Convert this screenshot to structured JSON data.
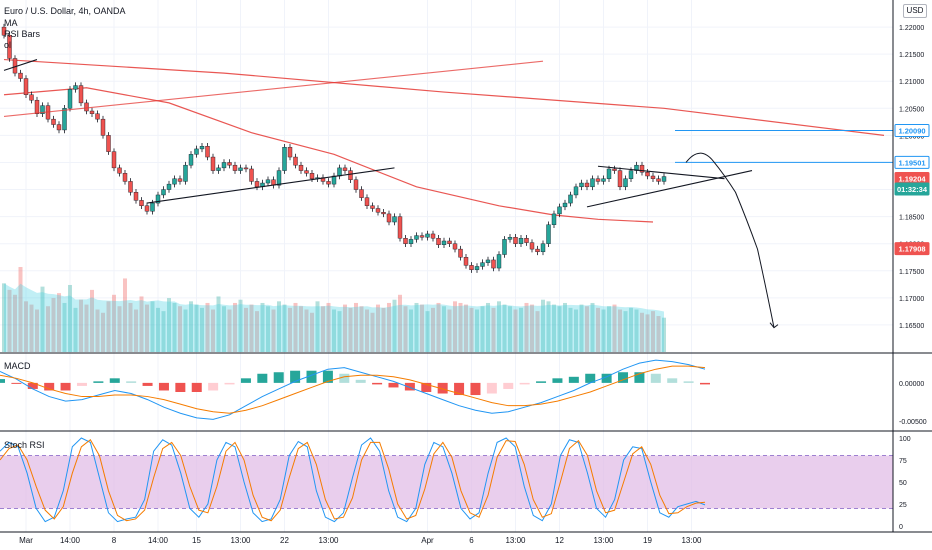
{
  "header": {
    "symbol": "Euro / U.S. Dollar, 4h, OANDA",
    "currency_button": "USD",
    "indicators": [
      "MA",
      "RSI Bars",
      "ol"
    ]
  },
  "colors": {
    "bull": "#26a69a",
    "bear": "#ef5350",
    "ma": "#e53935",
    "trend": "#131722",
    "level": "#2196f3",
    "stoch_k": "#2196f3",
    "stoch_d": "#f57c00",
    "stoch_band": "#e1bee7",
    "macd_line": "#2196f3",
    "signal_line": "#f57c00"
  },
  "chart_data": {
    "type": "candlestick",
    "symbol": "Euro / U.S. Dollar",
    "timeframe": "4h",
    "price_axis": {
      "ylim": [
        1.16,
        1.225
      ],
      "ticks": [
        "1.22000",
        "1.21500",
        "1.21000",
        "1.20500",
        "1.20000",
        "1.19500",
        "1.19000",
        "1.18500",
        "1.18000",
        "1.17500",
        "1.17000",
        "1.16500"
      ]
    },
    "price_labels": [
      {
        "text": "1.20090",
        "value": 1.2009,
        "style": "outline"
      },
      {
        "text": "1.19501",
        "value": 1.19501,
        "style": "outline"
      },
      {
        "text": "1.19204",
        "value": 1.19204,
        "style": "bear"
      },
      {
        "text": "01:32:34",
        "value": 1.1901,
        "style": "bull"
      },
      {
        "text": "1.17908",
        "value": 1.17908,
        "style": "bear"
      }
    ],
    "x_axis": {
      "labels": [
        "Mar",
        "14:00",
        "8",
        "14:00",
        "15",
        "13:00",
        "22",
        "13:00",
        "Apr",
        "6",
        "13:00",
        "12",
        "13:00",
        "19",
        "13:00"
      ],
      "label_bars": [
        4,
        12,
        20,
        28,
        35,
        43,
        51,
        59,
        77,
        85,
        93,
        101,
        109,
        117,
        125
      ]
    },
    "closes": [
      1.2185,
      1.2142,
      1.2115,
      1.2105,
      1.2075,
      1.2065,
      1.204,
      1.2055,
      1.203,
      1.202,
      1.201,
      1.205,
      1.2085,
      1.2092,
      1.206,
      1.2045,
      1.204,
      1.203,
      1.2,
      1.197,
      1.194,
      1.193,
      1.1915,
      1.1895,
      1.188,
      1.187,
      1.186,
      1.1875,
      1.189,
      1.19,
      1.191,
      1.192,
      1.1915,
      1.1945,
      1.1965,
      1.1975,
      1.198,
      1.196,
      1.1935,
      1.194,
      1.195,
      1.1945,
      1.1935,
      1.194,
      1.1938,
      1.1915,
      1.1905,
      1.1912,
      1.1918,
      1.1908,
      1.1935,
      1.1978,
      1.196,
      1.1945,
      1.1935,
      1.193,
      1.192,
      1.1922,
      1.1915,
      1.191,
      1.1925,
      1.194,
      1.1935,
      1.1918,
      1.19,
      1.1885,
      1.187,
      1.1865,
      1.1858,
      1.1855,
      1.184,
      1.185,
      1.181,
      1.18,
      1.1808,
      1.1815,
      1.1812,
      1.1818,
      1.181,
      1.1798,
      1.1805,
      1.18,
      1.179,
      1.1775,
      1.176,
      1.1752,
      1.1758,
      1.1765,
      1.177,
      1.1755,
      1.178,
      1.1808,
      1.1812,
      1.18,
      1.181,
      1.1802,
      1.179,
      1.1785,
      1.18,
      1.1835,
      1.1855,
      1.1868,
      1.1875,
      1.189,
      1.1905,
      1.1912,
      1.1905,
      1.192,
      1.1915,
      1.192,
      1.1938,
      1.1935,
      1.1905,
      1.192,
      1.1935,
      1.1945,
      1.1932,
      1.1925,
      1.192,
      1.1915,
      1.1924
    ],
    "moving_averages": [
      {
        "name": "MA",
        "points": [
          [
            0,
            1.2075
          ],
          [
            15,
            1.2088
          ],
          [
            30,
            1.206
          ],
          [
            45,
            1.2005
          ],
          [
            60,
            1.1965
          ],
          [
            75,
            1.1905
          ],
          [
            90,
            1.187
          ],
          [
            100,
            1.1853
          ],
          [
            108,
            1.1845
          ],
          [
            118,
            1.184
          ]
        ]
      },
      {
        "name": "MA long",
        "points": [
          [
            0,
            1.214
          ],
          [
            40,
            1.2115
          ],
          [
            80,
            1.208
          ],
          [
            120,
            1.205
          ],
          [
            160,
            1.2
          ]
        ]
      }
    ],
    "trendlines": [
      {
        "points": [
          [
            0,
            1.2035
          ],
          [
            98,
            1.2137
          ]
        ],
        "color": "ma"
      },
      {
        "points": [
          [
            0,
            1.212
          ],
          [
            6,
            1.214
          ]
        ],
        "color": "trend"
      },
      {
        "points": [
          [
            26,
            1.1875
          ],
          [
            71,
            1.194
          ]
        ],
        "color": "trend"
      },
      {
        "points": [
          [
            106,
            1.1868
          ],
          [
            136,
            1.1935
          ]
        ],
        "color": "trend"
      },
      {
        "points": [
          [
            108,
            1.1943
          ],
          [
            131,
            1.192
          ]
        ],
        "color": "trend"
      }
    ],
    "horizontal_levels": [
      {
        "value": 1.2009,
        "from_bar": 122
      },
      {
        "value": 1.19501,
        "from_bar": 122
      }
    ],
    "projection": {
      "points": [
        [
          124,
          1.195
        ],
        [
          129,
          1.1952
        ],
        [
          133,
          1.1895
        ],
        [
          137,
          1.179
        ],
        [
          140,
          1.1645
        ]
      ]
    },
    "volume": [
      420,
      380,
      350,
      520,
      310,
      290,
      260,
      400,
      280,
      330,
      360,
      300,
      410,
      270,
      320,
      290,
      380,
      260,
      240,
      310,
      350,
      280,
      450,
      300,
      260,
      340,
      290,
      310,
      270,
      250,
      330,
      300,
      280,
      260,
      310,
      290,
      270,
      300,
      260,
      340,
      280,
      260,
      300,
      320,
      270,
      290,
      250,
      300,
      280,
      260,
      310,
      290,
      270,
      300,
      280,
      260,
      240,
      310,
      280,
      300,
      260,
      250,
      290,
      270,
      300,
      280,
      260,
      240,
      290,
      270,
      300,
      320,
      350,
      280,
      260,
      300,
      290,
      250,
      270,
      300,
      280,
      260,
      310,
      300,
      290,
      270,
      260,
      280,
      300,
      270,
      310,
      290,
      280,
      260,
      270,
      300,
      290,
      250,
      320,
      310,
      290,
      280,
      300,
      270,
      260,
      290,
      280,
      300,
      270,
      260,
      280,
      290,
      260,
      250,
      270,
      260,
      240,
      230,
      250,
      220,
      210
    ],
    "macd": {
      "title": "MACD",
      "ylim": [
        -0.0062,
        0.0038
      ],
      "ticks": [
        "0.00000",
        "-0.00500"
      ],
      "tick_values": [
        0,
        -0.005
      ],
      "macd_line": [
        0.0015,
        0.0005,
        -0.0008,
        -0.0018,
        -0.0024,
        -0.0022,
        -0.0016,
        -0.001,
        -0.0014,
        -0.0022,
        -0.0032,
        -0.004,
        -0.0046,
        -0.0048,
        -0.0042,
        -0.003,
        -0.0018,
        -0.0008,
        0.0002,
        0.001,
        0.0018,
        0.002,
        0.0014,
        0.0008,
        0.0002,
        -0.0006,
        -0.0014,
        -0.0022,
        -0.003,
        -0.0036,
        -0.004,
        -0.0038,
        -0.0032,
        -0.0026,
        -0.0018,
        -0.001,
        0.0,
        0.0008,
        0.0018,
        0.0026,
        0.003,
        0.0028,
        0.0024,
        0.0018
      ],
      "signal_line": [
        0.001,
        0.0006,
        0.0,
        -0.0008,
        -0.0014,
        -0.0018,
        -0.0018,
        -0.0016,
        -0.0016,
        -0.0018,
        -0.0022,
        -0.0028,
        -0.0034,
        -0.0038,
        -0.004,
        -0.0036,
        -0.003,
        -0.0022,
        -0.0014,
        -0.0006,
        0.0002,
        0.0008,
        0.001,
        0.001,
        0.0008,
        0.0004,
        -0.0002,
        -0.0008,
        -0.0014,
        -0.002,
        -0.0026,
        -0.003,
        -0.003,
        -0.0028,
        -0.0024,
        -0.0018,
        -0.0012,
        -0.0004,
        0.0004,
        0.0012,
        0.0018,
        0.0022,
        0.0022,
        0.002
      ],
      "histogram": [
        0.0005,
        -0.0001,
        -0.0008,
        -0.001,
        -0.001,
        -0.0004,
        0.0002,
        0.0006,
        0.0002,
        -0.0004,
        -0.001,
        -0.0012,
        -0.0012,
        -0.001,
        -0.0002,
        0.0006,
        0.0012,
        0.0014,
        0.0016,
        0.0016,
        0.0016,
        0.0012,
        0.0004,
        -0.0002,
        -0.0006,
        -0.001,
        -0.0012,
        -0.0014,
        -0.0016,
        -0.0016,
        -0.0014,
        -0.0008,
        -0.0002,
        0.0002,
        0.0006,
        0.0008,
        0.0012,
        0.0012,
        0.0014,
        0.0014,
        0.0012,
        0.0006,
        0.0002,
        -0.0002
      ]
    },
    "stoch_rsi": {
      "title": "Stoch RSI",
      "ylim": [
        0,
        100
      ],
      "ticks": [
        "100",
        "75",
        "50",
        "25",
        "0"
      ],
      "tick_values": [
        100,
        75,
        50,
        25,
        0
      ],
      "bands": [
        20,
        80
      ],
      "k": [
        85,
        95,
        90,
        60,
        20,
        5,
        10,
        40,
        90,
        100,
        95,
        55,
        15,
        5,
        8,
        10,
        30,
        85,
        98,
        92,
        60,
        20,
        10,
        25,
        75,
        95,
        90,
        50,
        15,
        5,
        8,
        30,
        80,
        96,
        90,
        40,
        10,
        5,
        15,
        55,
        92,
        100,
        85,
        40,
        10,
        5,
        20,
        70,
        95,
        90,
        60,
        20,
        8,
        15,
        60,
        95,
        100,
        90,
        45,
        12,
        6,
        25,
        80,
        98,
        95,
        60,
        20,
        10,
        30,
        75,
        90,
        88,
        50,
        15,
        10,
        22,
        25,
        28,
        24
      ],
      "d": [
        75,
        88,
        92,
        75,
        45,
        18,
        8,
        22,
        60,
        90,
        98,
        80,
        40,
        12,
        6,
        8,
        18,
        55,
        88,
        95,
        80,
        45,
        18,
        15,
        45,
        85,
        95,
        75,
        35,
        10,
        6,
        18,
        55,
        88,
        95,
        70,
        30,
        8,
        10,
        32,
        75,
        95,
        95,
        65,
        25,
        8,
        12,
        42,
        82,
        95,
        78,
        40,
        15,
        10,
        35,
        78,
        97,
        96,
        70,
        30,
        10,
        14,
        50,
        88,
        97,
        80,
        40,
        15,
        18,
        50,
        82,
        90,
        70,
        35,
        14,
        15,
        22,
        26,
        27
      ]
    }
  }
}
